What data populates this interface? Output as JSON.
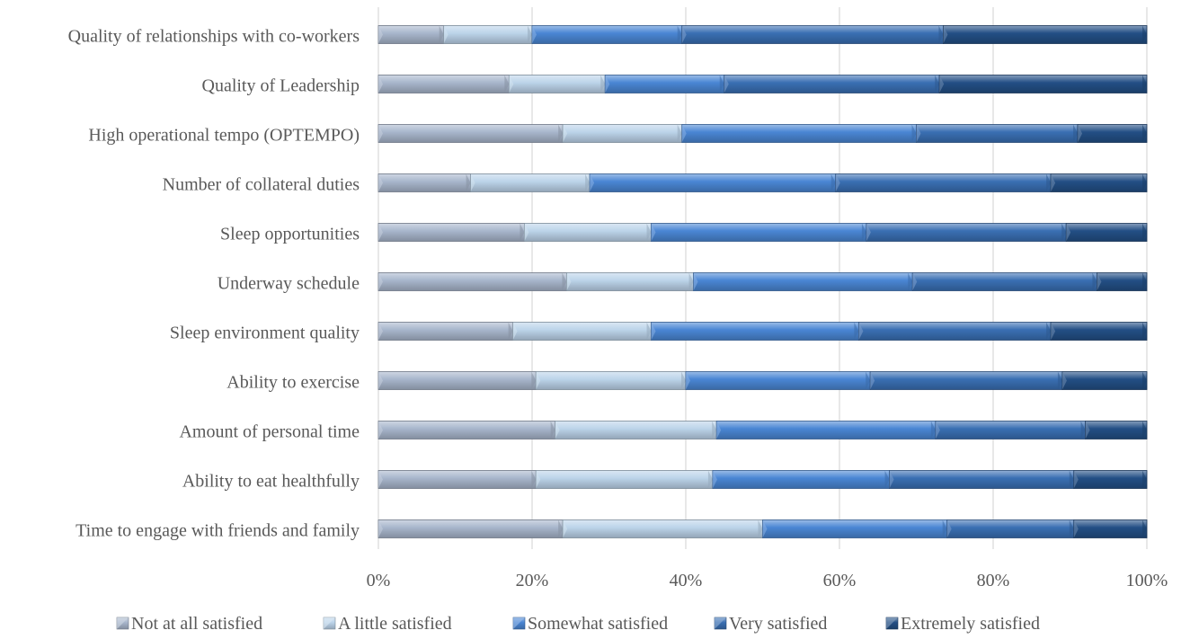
{
  "chart_data": {
    "type": "bar",
    "orientation": "horizontal",
    "stacked": true,
    "percent": true,
    "title": "",
    "xlabel": "",
    "ylabel": "",
    "xlim": [
      0,
      100
    ],
    "x_ticks": [
      "0%",
      "20%",
      "40%",
      "60%",
      "80%",
      "100%"
    ],
    "grid": "vertical",
    "legend_position": "bottom",
    "categories": [
      "Quality of relationships with co-workers",
      "Quality of Leadership",
      "High operational tempo (OPTEMPO)",
      "Number of collateral duties",
      "Sleep opportunities",
      "Underway schedule",
      "Sleep environment quality",
      "Ability to exercise",
      "Amount of personal time",
      "Ability to eat healthfully",
      "Time to engage with friends and family"
    ],
    "series": [
      {
        "name": "Not at all satisfied",
        "color": "#a8b6cc",
        "values": [
          8.5,
          17,
          24,
          12,
          19,
          24.5,
          17.5,
          20.5,
          23,
          20.5,
          24
        ]
      },
      {
        "name": "A little satisfied",
        "color": "#bcd4ea",
        "values": [
          11.5,
          12.5,
          15.5,
          15.5,
          16.5,
          16.5,
          18,
          19.5,
          21,
          23,
          26
        ]
      },
      {
        "name": "Somewhat satisfied",
        "color": "#4a86d4",
        "values": [
          19.5,
          15.5,
          30.5,
          32,
          28,
          28.5,
          27,
          24,
          28.5,
          23,
          24
        ]
      },
      {
        "name": "Very satisfied",
        "color": "#3a6fb3",
        "values": [
          34,
          28,
          21,
          28,
          26,
          24,
          25,
          25,
          19.5,
          24,
          16.5
        ]
      },
      {
        "name": "Extremely satisfied",
        "color": "#234f85",
        "values": [
          26.5,
          27,
          9,
          12.5,
          10.5,
          6.5,
          12.5,
          11,
          8,
          9.5,
          9.5
        ]
      }
    ]
  }
}
